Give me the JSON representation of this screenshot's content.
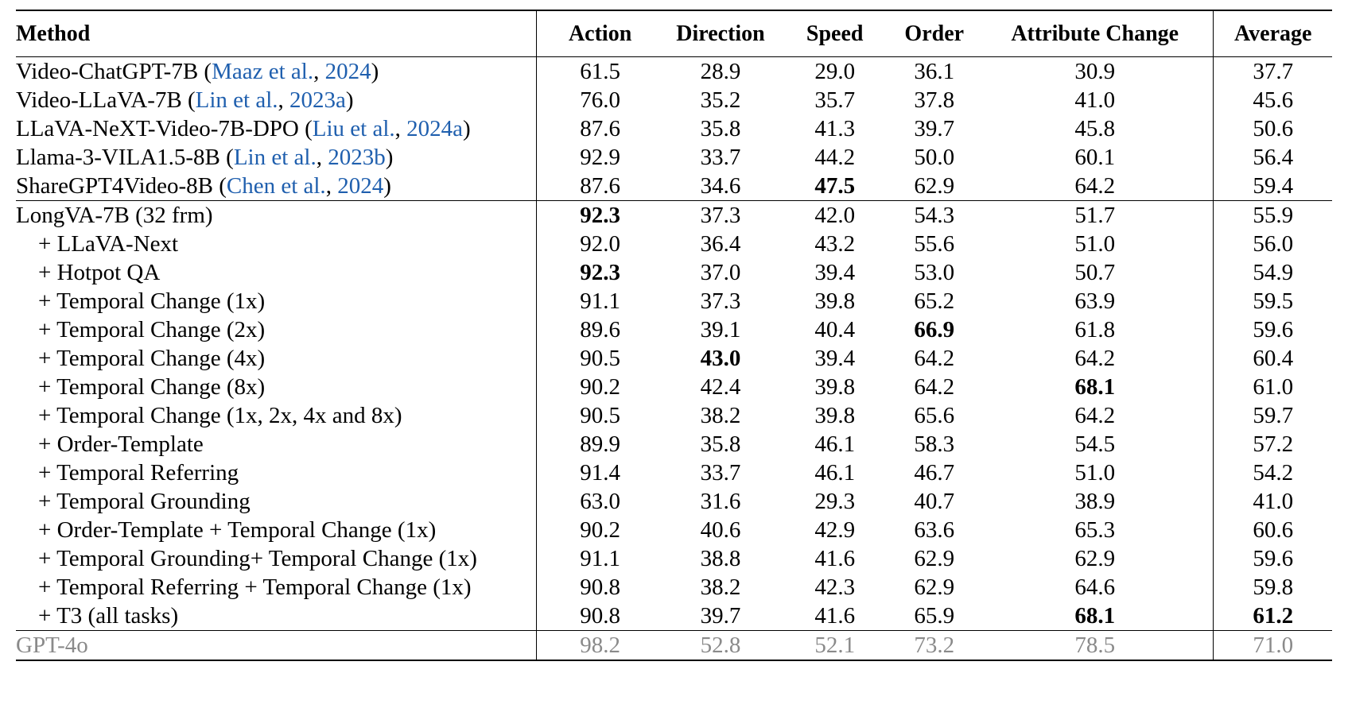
{
  "table": {
    "headers": [
      "Method",
      "Action",
      "Direction",
      "Speed",
      "Order",
      "Attribute Change",
      "Average"
    ],
    "groups": [
      {
        "rows": [
          {
            "name": "Video-ChatGPT-7B (",
            "cite_author": "Maaz et al.",
            "cite_sep": ", ",
            "cite_year": "2024",
            "close": ")",
            "values": [
              "61.5",
              "28.9",
              "29.0",
              "36.1",
              "30.9",
              "37.7"
            ]
          },
          {
            "name": "Video-LLaVA-7B (",
            "cite_author": "Lin et al.",
            "cite_sep": ", ",
            "cite_year": "2023a",
            "close": ")",
            "values": [
              "76.0",
              "35.2",
              "35.7",
              "37.8",
              "41.0",
              "45.6"
            ]
          },
          {
            "name": "LLaVA-NeXT-Video-7B-DPO (",
            "cite_author": "Liu et al.",
            "cite_sep": ", ",
            "cite_year": "2024a",
            "close": ")",
            "values": [
              "87.6",
              "35.8",
              "41.3",
              "39.7",
              "45.8",
              "50.6"
            ]
          },
          {
            "name": "Llama-3-VILA1.5-8B (",
            "cite_author": "Lin et al.",
            "cite_sep": ", ",
            "cite_year": "2023b",
            "close": ")",
            "values": [
              "92.9",
              "33.7",
              "44.2",
              "50.0",
              "60.1",
              "56.4"
            ]
          },
          {
            "name": "ShareGPT4Video-8B (",
            "cite_author": "Chen et al.",
            "cite_sep": ", ",
            "cite_year": "2024",
            "close": ")",
            "values": [
              "87.6",
              "34.6",
              "47.5",
              "62.9",
              "64.2",
              "59.4"
            ],
            "bold": [
              2
            ]
          }
        ]
      },
      {
        "rows": [
          {
            "name": "LongVA-7B (32 frm)",
            "values": [
              "92.3",
              "37.3",
              "42.0",
              "54.3",
              "51.7",
              "55.9"
            ],
            "bold": [
              0
            ]
          },
          {
            "name": "+ LLaVA-Next",
            "indent": true,
            "values": [
              "92.0",
              "36.4",
              "43.2",
              "55.6",
              "51.0",
              "56.0"
            ]
          },
          {
            "name": "+ Hotpot QA",
            "indent": true,
            "values": [
              "92.3",
              "37.0",
              "39.4",
              "53.0",
              "50.7",
              "54.9"
            ],
            "bold": [
              0
            ]
          },
          {
            "name": "+ Temporal Change (1x)",
            "indent": true,
            "values": [
              "91.1",
              "37.3",
              "39.8",
              "65.2",
              "63.9",
              "59.5"
            ]
          },
          {
            "name": "+ Temporal Change (2x)",
            "indent": true,
            "values": [
              "89.6",
              "39.1",
              "40.4",
              "66.9",
              "61.8",
              "59.6"
            ],
            "bold": [
              3
            ]
          },
          {
            "name": "+ Temporal Change (4x)",
            "indent": true,
            "values": [
              "90.5",
              "43.0",
              "39.4",
              "64.2",
              "64.2",
              "60.4"
            ],
            "bold": [
              1
            ]
          },
          {
            "name": "+ Temporal Change (8x)",
            "indent": true,
            "values": [
              "90.2",
              "42.4",
              "39.8",
              "64.2",
              "68.1",
              "61.0"
            ],
            "bold": [
              4
            ]
          },
          {
            "name": "+ Temporal Change (1x, 2x, 4x and 8x)",
            "indent": true,
            "values": [
              "90.5",
              "38.2",
              "39.8",
              "65.6",
              "64.2",
              "59.7"
            ]
          },
          {
            "name": "+ Order-Template",
            "indent": true,
            "values": [
              "89.9",
              "35.8",
              "46.1",
              "58.3",
              "54.5",
              "57.2"
            ]
          },
          {
            "name": "+ Temporal Referring",
            "indent": true,
            "values": [
              "91.4",
              "33.7",
              "46.1",
              "46.7",
              "51.0",
              "54.2"
            ]
          },
          {
            "name": "+ Temporal Grounding",
            "indent": true,
            "values": [
              "63.0",
              "31.6",
              "29.3",
              "40.7",
              "38.9",
              "41.0"
            ]
          },
          {
            "name": "+ Order-Template + Temporal Change (1x)",
            "indent": true,
            "values": [
              "90.2",
              "40.6",
              "42.9",
              "63.6",
              "65.3",
              "60.6"
            ]
          },
          {
            "name": "+ Temporal Grounding+ Temporal Change (1x)",
            "indent": true,
            "values": [
              "91.1",
              "38.8",
              "41.6",
              "62.9",
              "62.9",
              "59.6"
            ]
          },
          {
            "name": "+ Temporal Referring + Temporal Change (1x)",
            "indent": true,
            "values": [
              "90.8",
              "38.2",
              "42.3",
              "62.9",
              "64.6",
              "59.8"
            ]
          },
          {
            "name": "+ T3 (all tasks)",
            "indent": true,
            "values": [
              "90.8",
              "39.7",
              "41.6",
              "65.9",
              "68.1",
              "61.2"
            ],
            "bold": [
              4,
              5
            ]
          }
        ]
      },
      {
        "rows": [
          {
            "name": "GPT-4o",
            "gray": true,
            "values": [
              "98.2",
              "52.8",
              "52.1",
              "73.2",
              "78.5",
              "71.0"
            ]
          }
        ]
      }
    ]
  }
}
